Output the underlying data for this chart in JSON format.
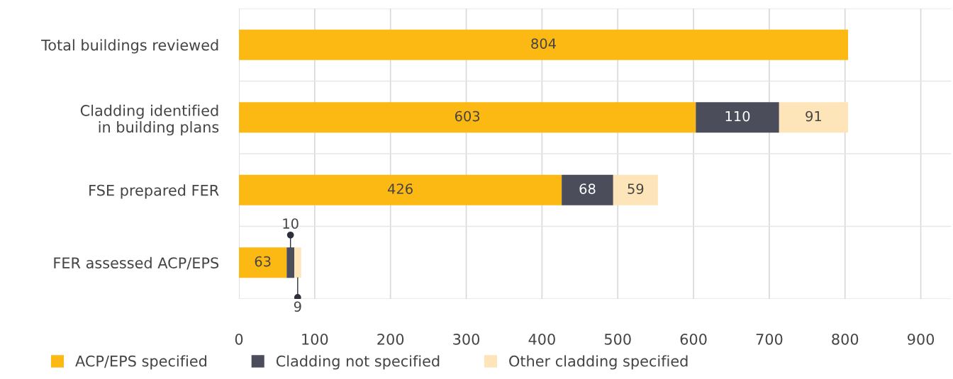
{
  "chart_data": {
    "type": "bar",
    "orientation": "horizontal",
    "stacked": true,
    "categories": [
      "Total buildings reviewed",
      "Cladding identified\nin building plans",
      "FSE prepared FER",
      "FER assessed ACP/EPS"
    ],
    "series": [
      {
        "name": "ACP/EPS specified",
        "color": "#fdb913",
        "values": [
          804,
          603,
          426,
          63
        ]
      },
      {
        "name": "Cladding not specified",
        "color": "#4b4d5a",
        "values": [
          null,
          110,
          68,
          10
        ]
      },
      {
        "name": "Other cladding specified",
        "color": "#fde5b9",
        "values": [
          null,
          91,
          59,
          9
        ]
      }
    ],
    "xlim": [
      0,
      940
    ],
    "xticks": [
      0,
      100,
      200,
      300,
      400,
      500,
      600,
      700,
      800,
      900
    ],
    "grid": "x",
    "legend": "bottom",
    "data_labels": true
  }
}
